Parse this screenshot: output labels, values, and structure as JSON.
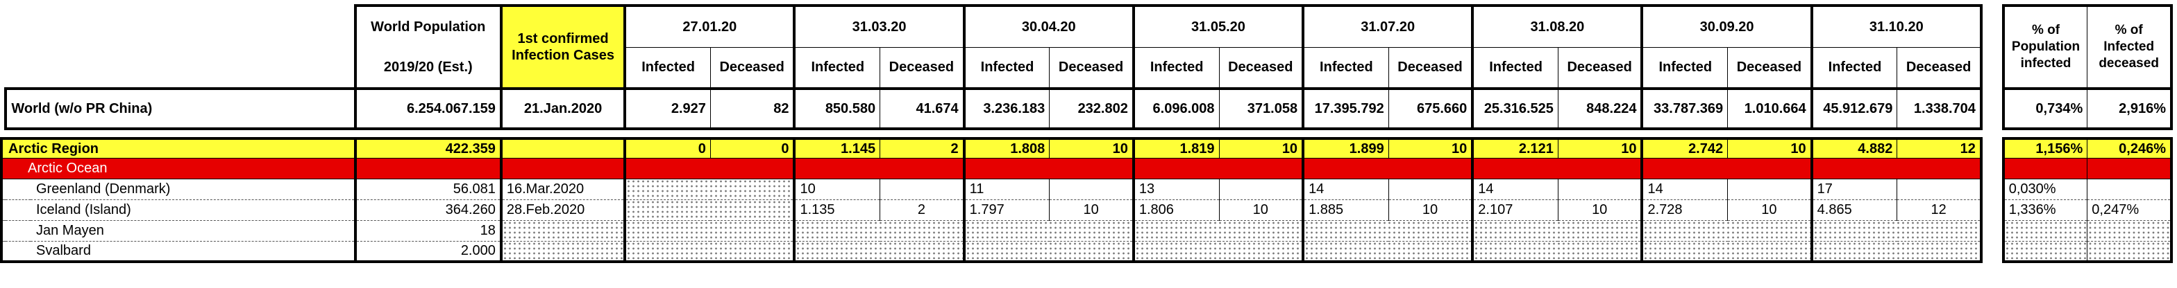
{
  "header": {
    "world_population_label": "World Population",
    "world_population_sub": "2019/20 (Est.)",
    "first_confirmed_label": "1st confirmed Infection Cases",
    "dates": [
      "27.01.20",
      "31.03.20",
      "30.04.20",
      "31.05.20",
      "31.07.20",
      "31.08.20",
      "30.09.20",
      "31.10.20"
    ],
    "infected_label": "Infected",
    "deceased_label": "Deceased",
    "pct_population_label": "% of Population infected",
    "pct_infected_label": "% of Infected deceased"
  },
  "world_row": {
    "name": "World (w/o PR China)",
    "population": "6.254.067.159",
    "first_case": "21.Jan.2020",
    "values": [
      [
        "2.927",
        "82"
      ],
      [
        "850.580",
        "41.674"
      ],
      [
        "3.236.183",
        "232.802"
      ],
      [
        "6.096.008",
        "371.058"
      ],
      [
        "17.395.792",
        "675.660"
      ],
      [
        "25.316.525",
        "848.224"
      ],
      [
        "33.787.369",
        "1.010.664"
      ],
      [
        "45.912.679",
        "1.338.704"
      ]
    ],
    "pct_population": "0,734%",
    "pct_infected": "2,916%"
  },
  "arctic_row": {
    "name": "Arctic Region",
    "population": "422.359",
    "values": [
      [
        "0",
        "0"
      ],
      [
        "1.145",
        "2"
      ],
      [
        "1.808",
        "10"
      ],
      [
        "1.819",
        "10"
      ],
      [
        "1.899",
        "10"
      ],
      [
        "2.121",
        "10"
      ],
      [
        "2.742",
        "10"
      ],
      [
        "4.882",
        "12"
      ]
    ],
    "pct_population": "1,156%",
    "pct_infected": "0,246%"
  },
  "ocean_row": {
    "name": "Arctic Ocean"
  },
  "rows": [
    {
      "name": "Greenland (Denmark)",
      "population": "56.081",
      "first_case": "16.Mar.2020",
      "values": [
        [
          "",
          ""
        ],
        [
          "10",
          ""
        ],
        [
          "11",
          ""
        ],
        [
          "13",
          ""
        ],
        [
          "14",
          ""
        ],
        [
          "14",
          ""
        ],
        [
          "14",
          ""
        ],
        [
          "17",
          ""
        ]
      ],
      "pct_population": "0,030%",
      "pct_infected": ""
    },
    {
      "name": "Iceland (Island)",
      "population": "364.260",
      "first_case": "28.Feb.2020",
      "values": [
        [
          "",
          ""
        ],
        [
          "1.135",
          "2"
        ],
        [
          "1.797",
          "10"
        ],
        [
          "1.806",
          "10"
        ],
        [
          "1.885",
          "10"
        ],
        [
          "2.107",
          "10"
        ],
        [
          "2.728",
          "10"
        ],
        [
          "4.865",
          "12"
        ]
      ],
      "pct_population": "1,336%",
      "pct_infected": "0,247%"
    },
    {
      "name": "Jan Mayen",
      "population": "18",
      "first_case": ""
    },
    {
      "name": "Svalbard",
      "population": "2.000",
      "first_case": ""
    }
  ],
  "colors": {
    "highlight_yellow": "#ffff38",
    "region_red": "#e60000",
    "dot_pattern": "#7a7a7a"
  }
}
